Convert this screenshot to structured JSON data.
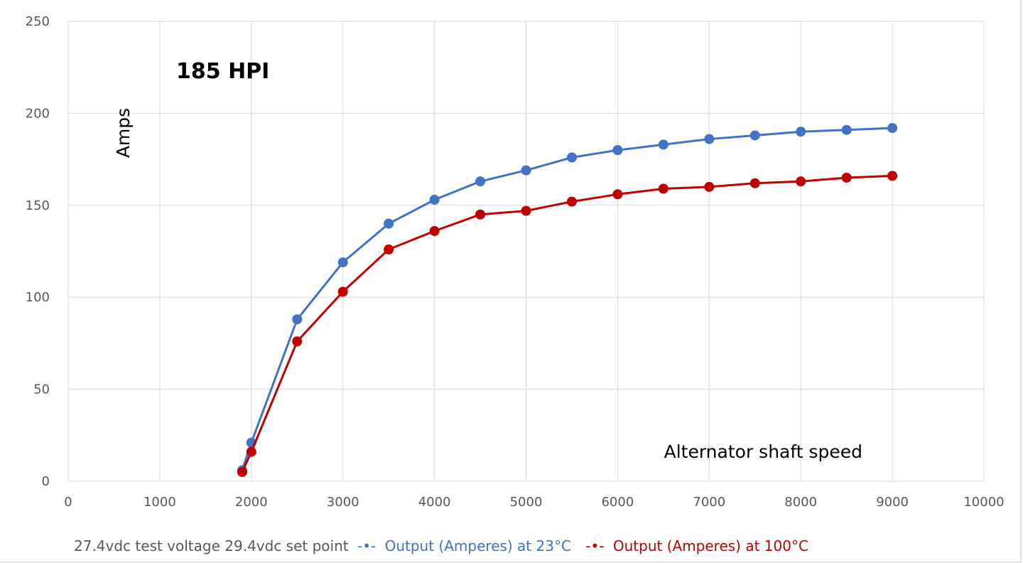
{
  "colors": {
    "series_23": "#4472c4",
    "series_100": "#c00000",
    "grid": "#d9d9d9",
    "tick_text": "#595959",
    "caption_text": "#595959"
  },
  "chart_data": {
    "type": "line",
    "title": "185 HPI",
    "xlabel": "Alternator shaft speed",
    "ylabel": "Amps",
    "xlim": [
      0,
      10000
    ],
    "ylim": [
      0,
      250
    ],
    "x_ticks": [
      "0",
      "1000",
      "2000",
      "3000",
      "4000",
      "5000",
      "6000",
      "7000",
      "8000",
      "9000",
      "10000"
    ],
    "y_ticks": [
      "0",
      "50",
      "100",
      "150",
      "200",
      "250"
    ],
    "grid": true,
    "legend_position": "bottom",
    "legend_caption": "27.4vdc test voltage 29.4vdc set point",
    "legend_marker": "-•-",
    "series": [
      {
        "name": "Output (Amperes) at 23°C",
        "color": "#4472c4",
        "x": [
          1900,
          2000,
          2500,
          3000,
          3500,
          4000,
          4500,
          5000,
          5500,
          6000,
          6500,
          7000,
          7500,
          8000,
          8500,
          9000
        ],
        "y": [
          6,
          21,
          88,
          119,
          140,
          153,
          163,
          169,
          176,
          180,
          183,
          186,
          188,
          190,
          191,
          192
        ]
      },
      {
        "name": "Output (Amperes) at 100°C",
        "color": "#c00000",
        "x": [
          1900,
          2000,
          2500,
          3000,
          3500,
          4000,
          4500,
          5000,
          5500,
          6000,
          6500,
          7000,
          7500,
          8000,
          8500,
          9000
        ],
        "y": [
          5,
          16,
          76,
          103,
          126,
          136,
          145,
          147,
          152,
          156,
          159,
          160,
          162,
          163,
          165,
          166
        ]
      }
    ]
  }
}
